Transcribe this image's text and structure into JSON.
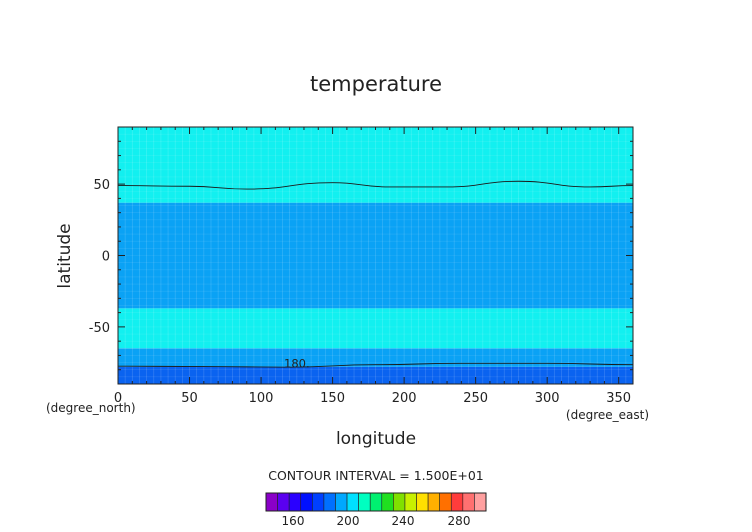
{
  "chart_data": {
    "type": "heatmap",
    "title": "temperature",
    "xlabel": "longitude",
    "ylabel": "latitude",
    "x_units": "(degree_east)",
    "y_units": "(degree_north)",
    "xlim": [
      0,
      360
    ],
    "ylim": [
      -90,
      90
    ],
    "xticks": [
      0,
      50,
      100,
      150,
      200,
      250,
      300,
      350
    ],
    "yticks": [
      -50,
      0,
      50
    ],
    "contour_interval_text": "CONTOUR INTERVAL = 1.500E+01",
    "contour_label": "180.",
    "filled_bands": [
      {
        "lat_range": [
          -90,
          -78
        ],
        "color": "#0a63f0"
      },
      {
        "lat_range": [
          -78,
          -65
        ],
        "color": "#0aa2f5"
      },
      {
        "lat_range": [
          -65,
          -37
        ],
        "color": "#12f0f0"
      },
      {
        "lat_range": [
          -37,
          37
        ],
        "color": "#0aa2f5"
      },
      {
        "lat_range": [
          37,
          90
        ],
        "color": "#12f0f0"
      }
    ],
    "contour_lines": [
      {
        "level": 180,
        "points": [
          [
            0,
            -77.5
          ],
          [
            60,
            -77.8
          ],
          [
            120,
            -78.2
          ],
          [
            180,
            -76.5
          ],
          [
            240,
            -75.5
          ],
          [
            300,
            -75.5
          ],
          [
            360,
            -76.5
          ]
        ]
      },
      {
        "level": 225,
        "points": [
          [
            0,
            49
          ],
          [
            50,
            48.5
          ],
          [
            90,
            46.5
          ],
          [
            150,
            51
          ],
          [
            190,
            48
          ],
          [
            230,
            48
          ],
          [
            280,
            52
          ],
          [
            330,
            48
          ],
          [
            360,
            49
          ]
        ]
      }
    ],
    "colorbar": {
      "tick_labels": [
        "160",
        "200",
        "240",
        "280"
      ],
      "colors": [
        "#8a00c8",
        "#5a00f0",
        "#2a00ff",
        "#0010ff",
        "#0040ff",
        "#0070ff",
        "#00a8ff",
        "#00e0ff",
        "#00ffc0",
        "#00f070",
        "#20e020",
        "#80e000",
        "#c8f000",
        "#ffe000",
        "#ffb000",
        "#ff7000",
        "#ff3c3c",
        "#ff7070",
        "#ffa0a0"
      ]
    }
  }
}
